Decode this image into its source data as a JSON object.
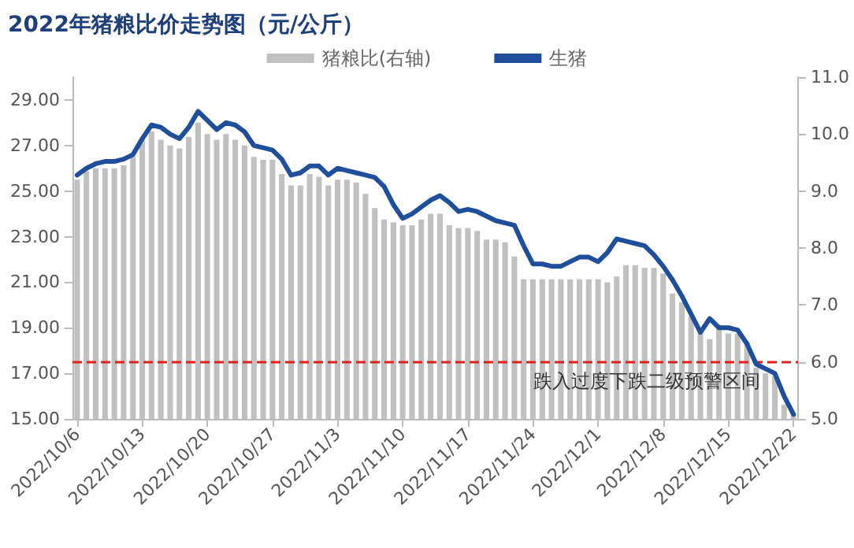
{
  "chart_data": {
    "type": "bar",
    "title": "2022年猪粮比价走势图（元/公斤）",
    "categories": [
      "2022/10/6",
      null,
      null,
      null,
      null,
      null,
      null,
      "2022/10/13",
      null,
      null,
      null,
      null,
      null,
      null,
      "2022/10/20",
      null,
      null,
      null,
      null,
      null,
      null,
      "2022/10/27",
      null,
      null,
      null,
      null,
      null,
      null,
      "2022/11/3",
      null,
      null,
      null,
      null,
      null,
      null,
      "2022/11/10",
      null,
      null,
      null,
      null,
      null,
      null,
      "2022/11/17",
      null,
      null,
      null,
      null,
      null,
      null,
      "2022/11/24",
      null,
      null,
      null,
      null,
      null,
      null,
      "2022/12/1",
      null,
      null,
      null,
      null,
      null,
      null,
      "2022/12/8",
      null,
      null,
      null,
      null,
      null,
      null,
      "2022/12/15",
      null,
      null,
      null,
      null,
      null,
      null,
      "2022/12/22"
    ],
    "series": [
      {
        "name": "猪粮比(右轴)",
        "axis": "y2",
        "color": "#c0c0c0",
        "values": [
          9.2,
          9.35,
          9.4,
          9.4,
          9.4,
          9.45,
          9.6,
          9.9,
          10.05,
          9.9,
          9.8,
          9.75,
          9.95,
          10.2,
          10.0,
          9.9,
          10.0,
          9.9,
          9.8,
          9.6,
          9.55,
          9.55,
          9.3,
          9.1,
          9.1,
          9.3,
          9.25,
          9.1,
          9.2,
          9.2,
          9.15,
          8.95,
          8.7,
          8.5,
          8.45,
          8.4,
          8.4,
          8.5,
          8.6,
          8.6,
          8.4,
          8.35,
          8.35,
          8.3,
          8.15,
          8.15,
          8.1,
          7.85,
          7.45,
          7.45,
          7.45,
          7.45,
          7.45,
          7.45,
          7.45,
          7.45,
          7.45,
          7.4,
          7.5,
          7.7,
          7.7,
          7.65,
          7.65,
          7.55,
          7.2,
          7.05,
          6.8,
          6.6,
          6.4,
          6.65,
          6.5,
          6.5,
          6.35,
          5.9,
          5.8,
          5.75,
          5.25,
          5.1
        ]
      },
      {
        "name": "生猪",
        "type": "line",
        "color": "#1f4e9a",
        "values": [
          25.7,
          26.0,
          26.2,
          26.3,
          26.3,
          26.4,
          26.6,
          27.3,
          27.9,
          27.8,
          27.5,
          27.3,
          27.8,
          28.5,
          28.1,
          27.7,
          28.0,
          27.9,
          27.6,
          27.0,
          26.9,
          26.8,
          26.4,
          25.7,
          25.8,
          26.1,
          26.1,
          25.7,
          26.0,
          25.9,
          25.8,
          25.7,
          25.6,
          25.2,
          24.4,
          23.8,
          24.0,
          24.3,
          24.6,
          24.8,
          24.5,
          24.1,
          24.2,
          24.1,
          23.9,
          23.7,
          23.6,
          23.5,
          22.6,
          21.8,
          21.8,
          21.7,
          21.7,
          21.9,
          22.1,
          22.1,
          21.9,
          22.3,
          22.9,
          22.8,
          22.7,
          22.6,
          22.2,
          21.7,
          21.1,
          20.4,
          19.6,
          18.8,
          19.4,
          19.0,
          19.0,
          18.9,
          18.3,
          17.4,
          17.2,
          17.0,
          16.0,
          15.2
        ]
      }
    ],
    "ylim": [
      15,
      30
    ],
    "yticks": [
      {
        "value": 15,
        "label": "15.00"
      },
      {
        "value": 17,
        "label": "17.00"
      },
      {
        "value": 19,
        "label": "19.00"
      },
      {
        "value": 21,
        "label": "21.00"
      },
      {
        "value": 23,
        "label": "23.00"
      },
      {
        "value": 25,
        "label": "25.00"
      },
      {
        "value": 27,
        "label": "27.00"
      },
      {
        "value": 29,
        "label": "29.00"
      }
    ],
    "y2lim": [
      5,
      11
    ],
    "y2ticks": [
      {
        "value": 5,
        "label": "5.0"
      },
      {
        "value": 6,
        "label": "6.0"
      },
      {
        "value": 7,
        "label": "7.0"
      },
      {
        "value": 8,
        "label": "8.0"
      },
      {
        "value": 9,
        "label": "9.0"
      },
      {
        "value": 10,
        "label": "10.0"
      },
      {
        "value": 11,
        "label": "11.0"
      }
    ],
    "ref_lines": [
      {
        "axis": "y2",
        "value": 6,
        "label": "跌入过度下跌二级预警区间",
        "color": "#e02020",
        "line_style": "dashed"
      }
    ],
    "legend": "top",
    "grid": false,
    "marker": "none",
    "line_style": "solid"
  }
}
